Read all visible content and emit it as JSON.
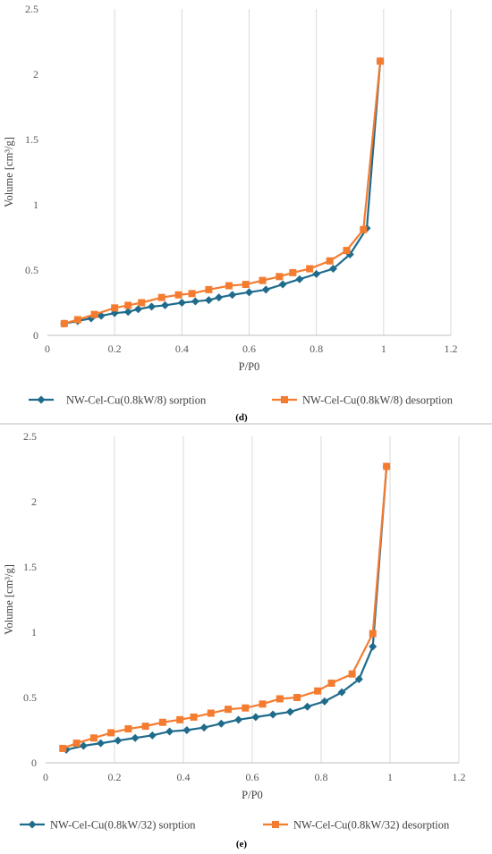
{
  "chart_data": [
    {
      "type": "line",
      "panel_label": "(d)",
      "xlabel": "P/P0",
      "ylabel": "Volume [cm³/g]",
      "xlim": [
        0,
        1.2
      ],
      "ylim": [
        0,
        2.5
      ],
      "x_ticks": [
        0,
        0.2,
        0.4,
        0.6,
        0.8,
        1,
        1.2
      ],
      "y_ticks": [
        0,
        0.5,
        1,
        1.5,
        2,
        2.5
      ],
      "x_tick_labels": [
        "0",
        "0.2",
        "0.4",
        "0.6",
        "0.8",
        "1",
        "1.2"
      ],
      "y_tick_labels": [
        "0",
        "0.5",
        "1",
        "1.5",
        "2",
        "2.5"
      ],
      "grid": "vertical",
      "legend_position": "bottom",
      "series": [
        {
          "name": "NW-Cel-Cu(0.8kW/8) sorption",
          "color": "#1f6b8c",
          "marker": "diamond",
          "x": [
            0.05,
            0.09,
            0.13,
            0.16,
            0.2,
            0.24,
            0.27,
            0.31,
            0.35,
            0.4,
            0.44,
            0.48,
            0.51,
            0.55,
            0.6,
            0.65,
            0.7,
            0.75,
            0.8,
            0.85,
            0.9,
            0.95,
            0.99
          ],
          "y": [
            0.09,
            0.11,
            0.13,
            0.15,
            0.17,
            0.18,
            0.2,
            0.22,
            0.23,
            0.25,
            0.26,
            0.27,
            0.29,
            0.31,
            0.33,
            0.35,
            0.39,
            0.43,
            0.47,
            0.51,
            0.62,
            0.82,
            2.1
          ]
        },
        {
          "name": "NW-Cel-Cu(0.8kW/8) desorption",
          "color": "#f47c30",
          "marker": "square",
          "x": [
            0.05,
            0.09,
            0.14,
            0.2,
            0.24,
            0.28,
            0.34,
            0.39,
            0.43,
            0.48,
            0.54,
            0.59,
            0.64,
            0.69,
            0.73,
            0.78,
            0.84,
            0.89,
            0.94,
            0.99
          ],
          "y": [
            0.09,
            0.12,
            0.16,
            0.21,
            0.23,
            0.25,
            0.29,
            0.31,
            0.32,
            0.35,
            0.38,
            0.39,
            0.42,
            0.45,
            0.48,
            0.51,
            0.57,
            0.65,
            0.81,
            2.1
          ]
        }
      ]
    },
    {
      "type": "line",
      "panel_label": "(e)",
      "xlabel": "P/P0",
      "ylabel": "Volume [cm³/g]",
      "xlim": [
        0,
        1.2
      ],
      "ylim": [
        0,
        2.5
      ],
      "x_ticks": [
        0,
        0.2,
        0.4,
        0.6,
        0.8,
        1,
        1.2
      ],
      "y_ticks": [
        0,
        0.5,
        1,
        1.5,
        2,
        2.5
      ],
      "x_tick_labels": [
        "0",
        "0.2",
        "0.4",
        "0.6",
        "0.8",
        "1",
        "1.2"
      ],
      "y_tick_labels": [
        "0",
        "0.5",
        "1",
        "1.5",
        "2",
        "2.5"
      ],
      "grid": "vertical",
      "legend_position": "bottom",
      "series": [
        {
          "name": "NW-Cel-Cu(0.8kW/32) sorption",
          "color": "#1f6b8c",
          "marker": "diamond",
          "x": [
            0.06,
            0.11,
            0.16,
            0.21,
            0.26,
            0.31,
            0.36,
            0.41,
            0.46,
            0.51,
            0.56,
            0.61,
            0.66,
            0.71,
            0.76,
            0.81,
            0.86,
            0.91,
            0.95,
            0.99
          ],
          "y": [
            0.1,
            0.13,
            0.15,
            0.17,
            0.19,
            0.21,
            0.24,
            0.25,
            0.27,
            0.3,
            0.33,
            0.35,
            0.37,
            0.39,
            0.43,
            0.47,
            0.54,
            0.64,
            0.89,
            2.27
          ]
        },
        {
          "name": "NW-Cel-Cu(0.8kW/32) desorption",
          "color": "#f47c30",
          "marker": "square",
          "x": [
            0.05,
            0.09,
            0.14,
            0.19,
            0.24,
            0.29,
            0.34,
            0.39,
            0.43,
            0.48,
            0.53,
            0.58,
            0.63,
            0.68,
            0.73,
            0.79,
            0.83,
            0.89,
            0.95,
            0.99
          ],
          "y": [
            0.11,
            0.15,
            0.19,
            0.23,
            0.26,
            0.28,
            0.31,
            0.33,
            0.35,
            0.38,
            0.41,
            0.42,
            0.45,
            0.49,
            0.5,
            0.55,
            0.61,
            0.68,
            0.99,
            2.27
          ]
        }
      ]
    }
  ]
}
